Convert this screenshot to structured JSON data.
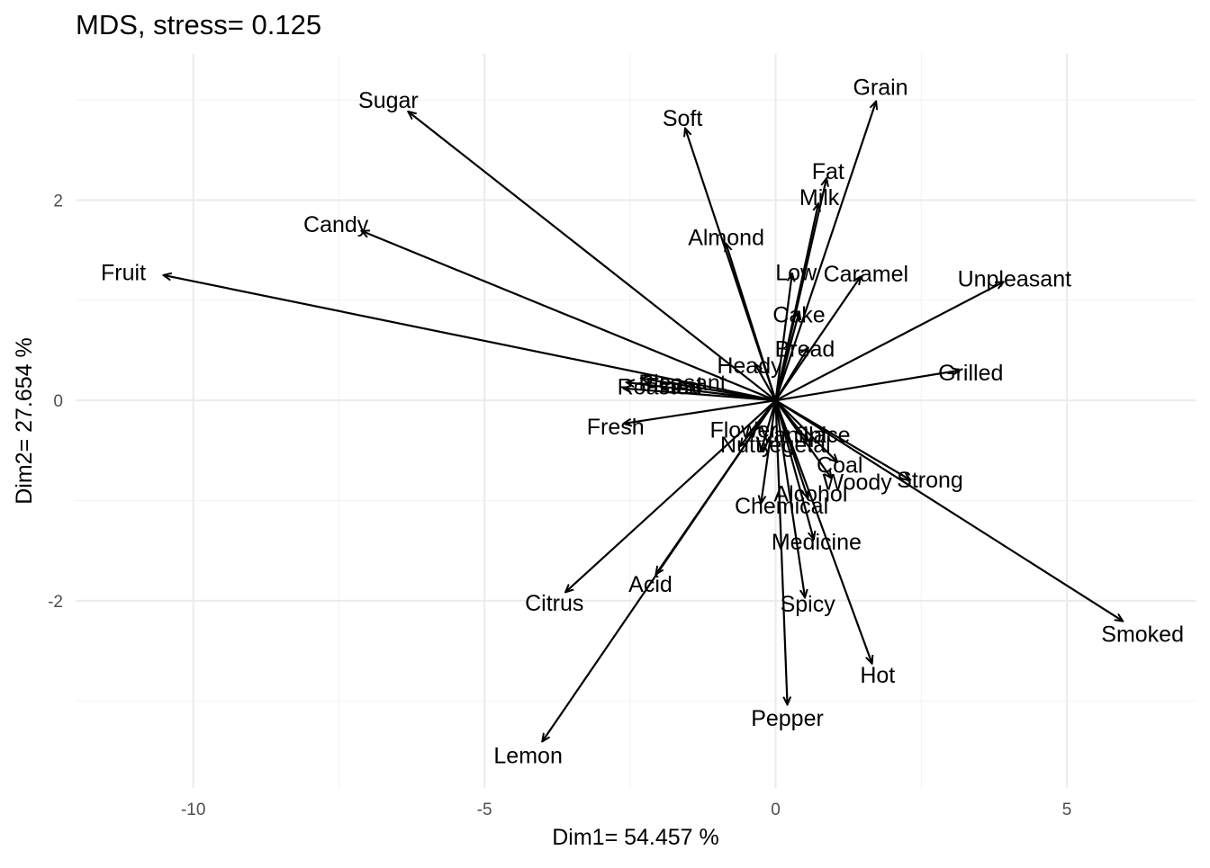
{
  "chart_data": {
    "type": "scatter",
    "subtype": "biplot-arrows",
    "title": "MDS, stress= 0.125",
    "xlabel": "Dim1= 54.457 %",
    "ylabel": "Dim2= 27.654 %",
    "xlim": [
      -12.02,
      7.21
    ],
    "ylim": [
      -3.87,
      3.46
    ],
    "x_ticks": [
      -10,
      -5,
      0,
      5
    ],
    "x_tick_labels": [
      "-10",
      "-5",
      "0",
      "5"
    ],
    "y_ticks": [
      -2,
      0,
      2
    ],
    "y_tick_labels": [
      "-2",
      "0",
      "2"
    ],
    "grid": true,
    "legend": "none",
    "arrow_color": "#000000",
    "origin": [
      0,
      0
    ],
    "points": [
      {
        "name": "Sugar",
        "x": -6.3,
        "y": 2.88
      },
      {
        "name": "Soft",
        "x": -1.55,
        "y": 2.71
      },
      {
        "name": "Grain",
        "x": 1.72,
        "y": 2.98
      },
      {
        "name": "Fat",
        "x": 0.87,
        "y": 2.21
      },
      {
        "name": "Milk",
        "x": 0.73,
        "y": 1.96
      },
      {
        "name": "Candy",
        "x": -7.1,
        "y": 1.69
      },
      {
        "name": "Almond",
        "x": -0.85,
        "y": 1.56
      },
      {
        "name": "Fruit",
        "x": -10.5,
        "y": 1.25
      },
      {
        "name": "Low",
        "x": 0.28,
        "y": 1.26
      },
      {
        "name": "Caramel",
        "x": 1.45,
        "y": 1.23
      },
      {
        "name": "Unpleasant",
        "x": 3.9,
        "y": 1.18
      },
      {
        "name": "Cake",
        "x": 0.4,
        "y": 0.88
      },
      {
        "name": "Bread",
        "x": 0.55,
        "y": 0.52
      },
      {
        "name": "Heady",
        "x": -0.35,
        "y": 0.36
      },
      {
        "name": "Grilled",
        "x": 3.15,
        "y": 0.3
      },
      {
        "name": "Pleasant",
        "x": -2.3,
        "y": 0.22
      },
      {
        "name": "Floral",
        "x": -2.55,
        "y": 0.18
      },
      {
        "name": "Roasted",
        "x": -2.6,
        "y": 0.12
      },
      {
        "name": "Fresh",
        "x": -2.6,
        "y": -0.23
      },
      {
        "name": "Flower",
        "x": -0.35,
        "y": -0.29
      },
      {
        "name": "Vanilla",
        "x": -0.5,
        "y": -0.36
      },
      {
        "name": "Nutty",
        "x": -0.6,
        "y": -0.45
      },
      {
        "name": "Vegetal",
        "x": -0.25,
        "y": -0.5
      },
      {
        "name": "Spice",
        "x": 0.55,
        "y": -0.4
      },
      {
        "name": "Coal",
        "x": 1.05,
        "y": -0.61
      },
      {
        "name": "Woody",
        "x": 0.95,
        "y": -0.77
      },
      {
        "name": "Strong",
        "x": 2.3,
        "y": -0.79
      },
      {
        "name": "Alcohol",
        "x": 0.55,
        "y": -0.97
      },
      {
        "name": "Chemical",
        "x": -0.25,
        "y": -1.02
      },
      {
        "name": "Medicine",
        "x": 0.65,
        "y": -1.38
      },
      {
        "name": "Acid",
        "x": -2.05,
        "y": -1.73
      },
      {
        "name": "Citrus",
        "x": -3.6,
        "y": -1.91
      },
      {
        "name": "Spicy",
        "x": 0.5,
        "y": -1.96
      },
      {
        "name": "Smoked",
        "x": 5.95,
        "y": -2.2
      },
      {
        "name": "Hot",
        "x": 1.65,
        "y": -2.62
      },
      {
        "name": "Pepper",
        "x": 0.2,
        "y": -3.03
      },
      {
        "name": "Lemon",
        "x": -4.0,
        "y": -3.4
      }
    ],
    "labels": [
      {
        "text": "Sugar",
        "x": -6.65,
        "y": 3.0
      },
      {
        "text": "Soft",
        "x": -1.6,
        "y": 2.82
      },
      {
        "text": "Grain",
        "x": 1.8,
        "y": 3.13
      },
      {
        "text": "Fat",
        "x": 0.9,
        "y": 2.29
      },
      {
        "text": "Milk",
        "x": 0.75,
        "y": 2.03
      },
      {
        "text": "Candy",
        "x": -7.55,
        "y": 1.76
      },
      {
        "text": "Almond",
        "x": -0.85,
        "y": 1.63
      },
      {
        "text": "Fruit",
        "x": -11.2,
        "y": 1.28
      },
      {
        "text": "Low",
        "x": 0.35,
        "y": 1.28
      },
      {
        "text": "Caramel",
        "x": 1.55,
        "y": 1.27
      },
      {
        "text": "Unpleasant",
        "x": 4.1,
        "y": 1.22
      },
      {
        "text": "Cake",
        "x": 0.4,
        "y": 0.86
      },
      {
        "text": "Bread",
        "x": 0.5,
        "y": 0.52
      },
      {
        "text": "Heady",
        "x": -0.45,
        "y": 0.35
      },
      {
        "text": "Grilled",
        "x": 3.35,
        "y": 0.28
      },
      {
        "text": "Pleasant",
        "x": -1.6,
        "y": 0.18
      },
      {
        "text": "Floral",
        "x": -1.75,
        "y": 0.15
      },
      {
        "text": "Roasted",
        "x": -2.0,
        "y": 0.14
      },
      {
        "text": "Fresh",
        "x": -2.75,
        "y": -0.26
      },
      {
        "text": "Flower",
        "x": -0.55,
        "y": -0.29
      },
      {
        "text": "Vanilla",
        "x": 0.3,
        "y": -0.34
      },
      {
        "text": "Nutty",
        "x": -0.5,
        "y": -0.44
      },
      {
        "text": "Vegetal",
        "x": 0.3,
        "y": -0.44
      },
      {
        "text": "Spice",
        "x": 0.8,
        "y": -0.34
      },
      {
        "text": "Coal",
        "x": 1.1,
        "y": -0.64
      },
      {
        "text": "Woody",
        "x": 1.4,
        "y": -0.81
      },
      {
        "text": "Strong",
        "x": 2.65,
        "y": -0.79
      },
      {
        "text": "Alcohol",
        "x": 0.6,
        "y": -0.93
      },
      {
        "text": "Chemical",
        "x": 0.1,
        "y": -1.05
      },
      {
        "text": "Medicine",
        "x": 0.7,
        "y": -1.41
      },
      {
        "text": "Acid",
        "x": -2.15,
        "y": -1.83
      },
      {
        "text": "Citrus",
        "x": -3.8,
        "y": -2.02
      },
      {
        "text": "Spicy",
        "x": 0.55,
        "y": -2.03
      },
      {
        "text": "Smoked",
        "x": 6.3,
        "y": -2.33
      },
      {
        "text": "Hot",
        "x": 1.75,
        "y": -2.74
      },
      {
        "text": "Pepper",
        "x": 0.2,
        "y": -3.17
      },
      {
        "text": "Lemon",
        "x": -4.25,
        "y": -3.54
      }
    ]
  }
}
